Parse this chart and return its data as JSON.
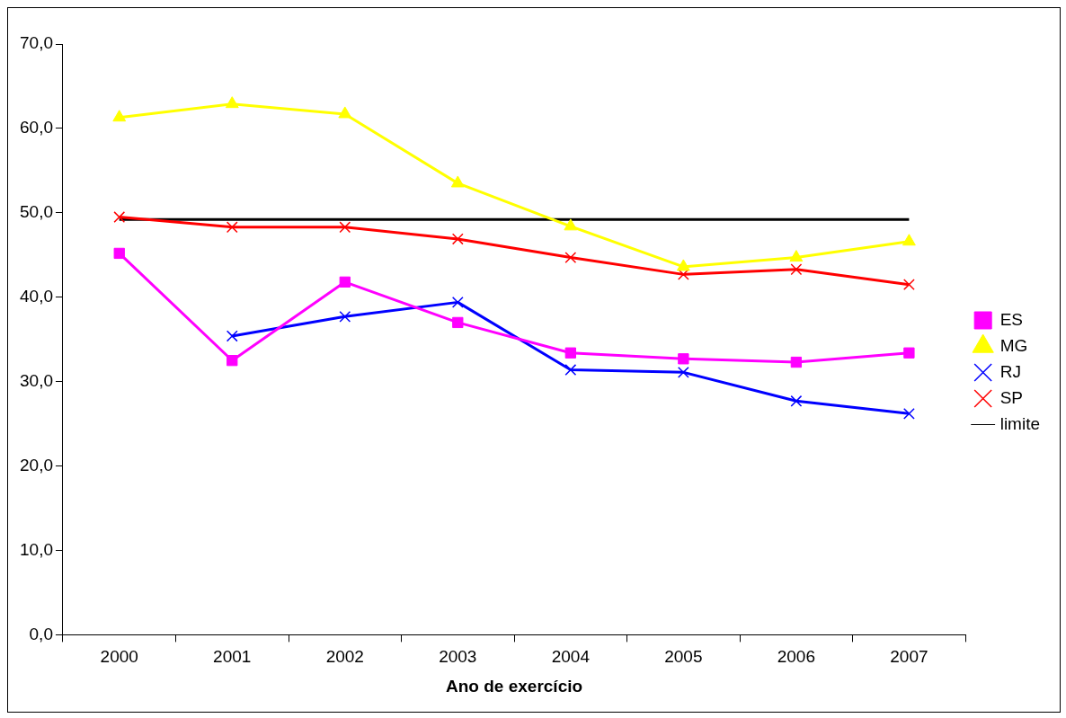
{
  "chart_data": {
    "type": "line",
    "xlabel": "Ano de exercício",
    "categories": [
      "2000",
      "2001",
      "2002",
      "2003",
      "2004",
      "2005",
      "2006",
      "2007"
    ],
    "ylim": [
      0,
      70
    ],
    "yticks": [
      {
        "value": 0,
        "label": "0,0"
      },
      {
        "value": 10,
        "label": "10,0"
      },
      {
        "value": 20,
        "label": "20,0"
      },
      {
        "value": 30,
        "label": "30,0"
      },
      {
        "value": 40,
        "label": "40,0"
      },
      {
        "value": 50,
        "label": "50,0"
      },
      {
        "value": 60,
        "label": "60,0"
      },
      {
        "value": 70,
        "label": "70,0"
      }
    ],
    "grid": false,
    "legend": "right",
    "line_style": "solid",
    "series": [
      {
        "name": "ES",
        "color": "#ff00ff",
        "marker": "square",
        "values": [
          45.2,
          32.5,
          41.8,
          37.0,
          33.4,
          32.7,
          32.3,
          33.4
        ]
      },
      {
        "name": "MG",
        "color": "#ffff00",
        "marker": "triangle",
        "values": [
          61.3,
          62.9,
          61.7,
          53.5,
          48.4,
          43.6,
          44.7,
          46.6
        ]
      },
      {
        "name": "RJ",
        "color": "#0000ff",
        "marker": "cross",
        "values": [
          null,
          35.4,
          37.7,
          39.4,
          31.4,
          31.1,
          27.7,
          26.2
        ]
      },
      {
        "name": "SP",
        "color": "#ff0000",
        "marker": "cross",
        "values": [
          49.5,
          48.3,
          48.3,
          46.9,
          44.7,
          42.7,
          43.3,
          41.5
        ]
      },
      {
        "name": "limite",
        "color": "#000000",
        "marker": "none",
        "values": [
          49.2,
          49.2,
          49.2,
          49.2,
          49.2,
          49.2,
          49.2,
          49.2
        ]
      }
    ]
  }
}
